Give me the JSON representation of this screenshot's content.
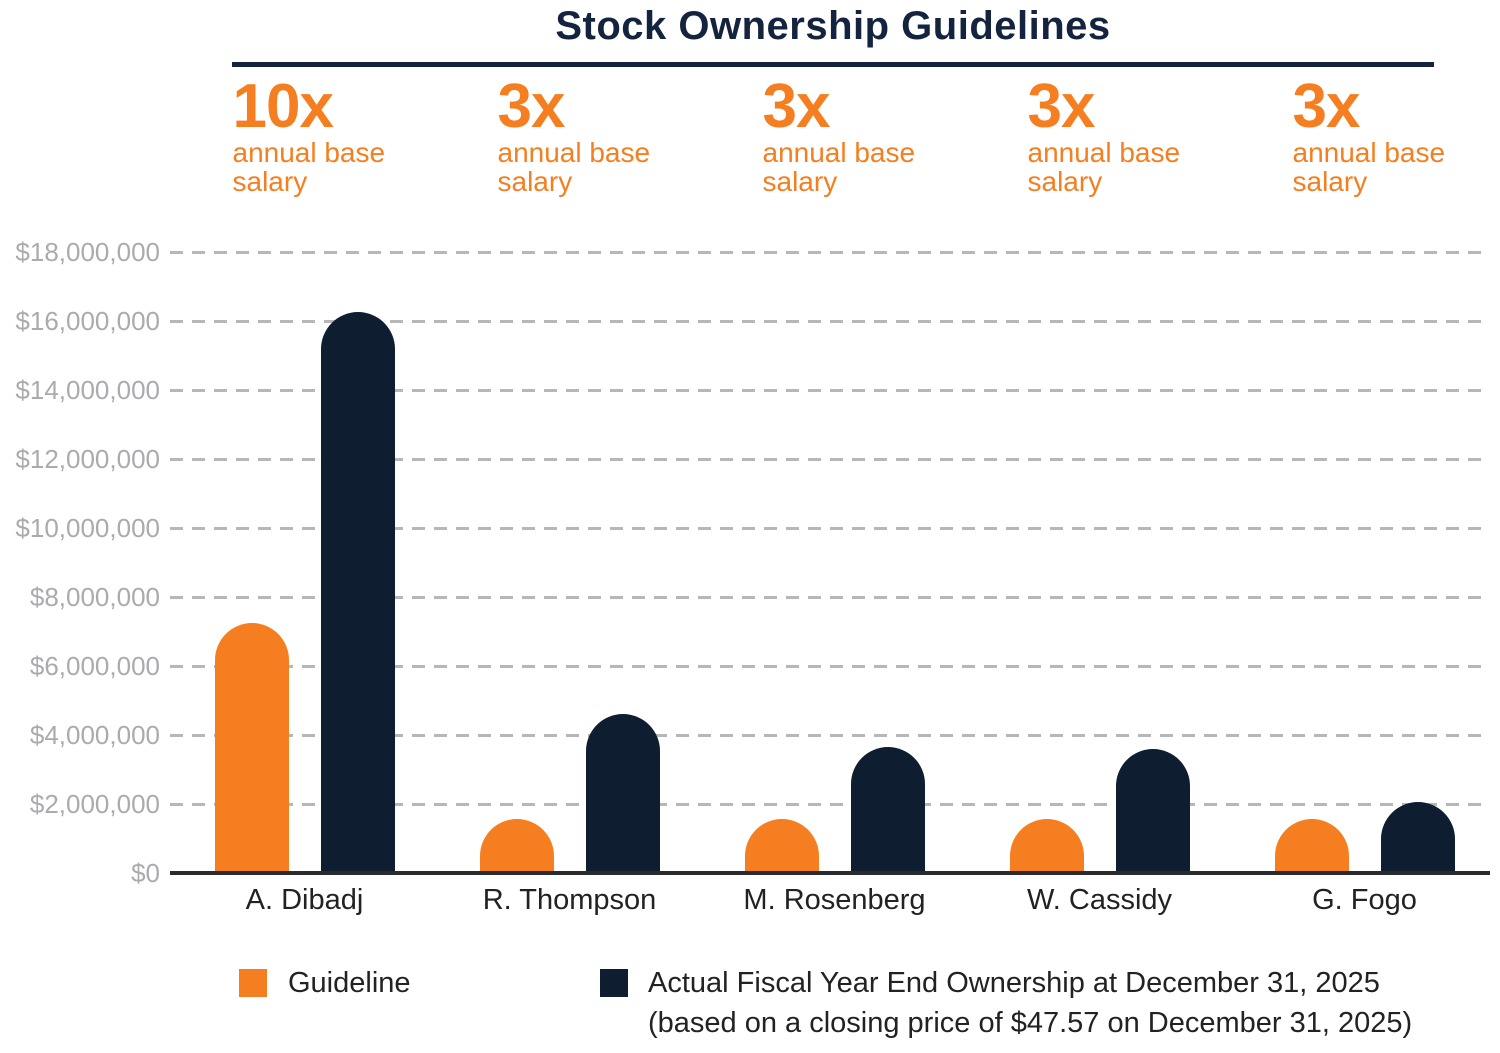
{
  "title": "Stock Ownership Guidelines",
  "multipliers": [
    {
      "text": "10x",
      "line1": "annual base",
      "line2": "salary"
    },
    {
      "text": "3x",
      "line1": "annual base",
      "line2": "salary"
    },
    {
      "text": "3x",
      "line1": "annual base",
      "line2": "salary"
    },
    {
      "text": "3x",
      "line1": "annual base",
      "line2": "salary"
    },
    {
      "text": "3x",
      "line1": "annual base",
      "line2": "salary"
    }
  ],
  "colors": {
    "guideline_orange": "#F57F20",
    "actual_navy": "#0F1D31",
    "title_navy": "#14243E",
    "axis_label_gray": "#A9ABAE",
    "gridline_gray": "#B5B7B9",
    "baseline_dark": "#2B2A2E",
    "category_label_dark": "#222225"
  },
  "chart_data": {
    "type": "bar",
    "title": "Stock Ownership Guidelines",
    "categories": [
      "A. Dibadj",
      "R. Thompson",
      "M. Rosenberg",
      "W. Cassidy",
      "G. Fogo"
    ],
    "guideline_multipliers": [
      "10x annual base salary",
      "3x annual base salary",
      "3x annual base salary",
      "3x annual base salary",
      "3x annual base salary"
    ],
    "series": [
      {
        "name": "Guideline",
        "color": "#F57F20",
        "values": [
          7200000,
          1500000,
          1500000,
          1500000,
          1500000
        ]
      },
      {
        "name": "Actual Fiscal Year End Ownership at December 31, 2025 (based on a closing price of $47.57 on December 31, 2025)",
        "color": "#0F1D31",
        "values": [
          16200000,
          4550000,
          3600000,
          3550000,
          2000000
        ]
      }
    ],
    "ylim": [
      0,
      18000000
    ],
    "ytick_step": 2000000,
    "ytick_labels": [
      "$0",
      "$2,000,000",
      "$4,000,000",
      "$6,000,000",
      "$8,000,000",
      "$10,000,000",
      "$12,000,000",
      "$14,000,000",
      "$16,000,000",
      "$18,000,000"
    ],
    "grid": "horizontal-dashed",
    "legend_position": "bottom"
  },
  "legend": {
    "items": [
      {
        "label": "Guideline",
        "color": "#F57F20"
      },
      {
        "label": "Actual Fiscal Year End Ownership at December 31, 2025",
        "label2": "(based on a closing price of $47.57 on December 31, 2025)",
        "color": "#0F1D31"
      }
    ]
  }
}
